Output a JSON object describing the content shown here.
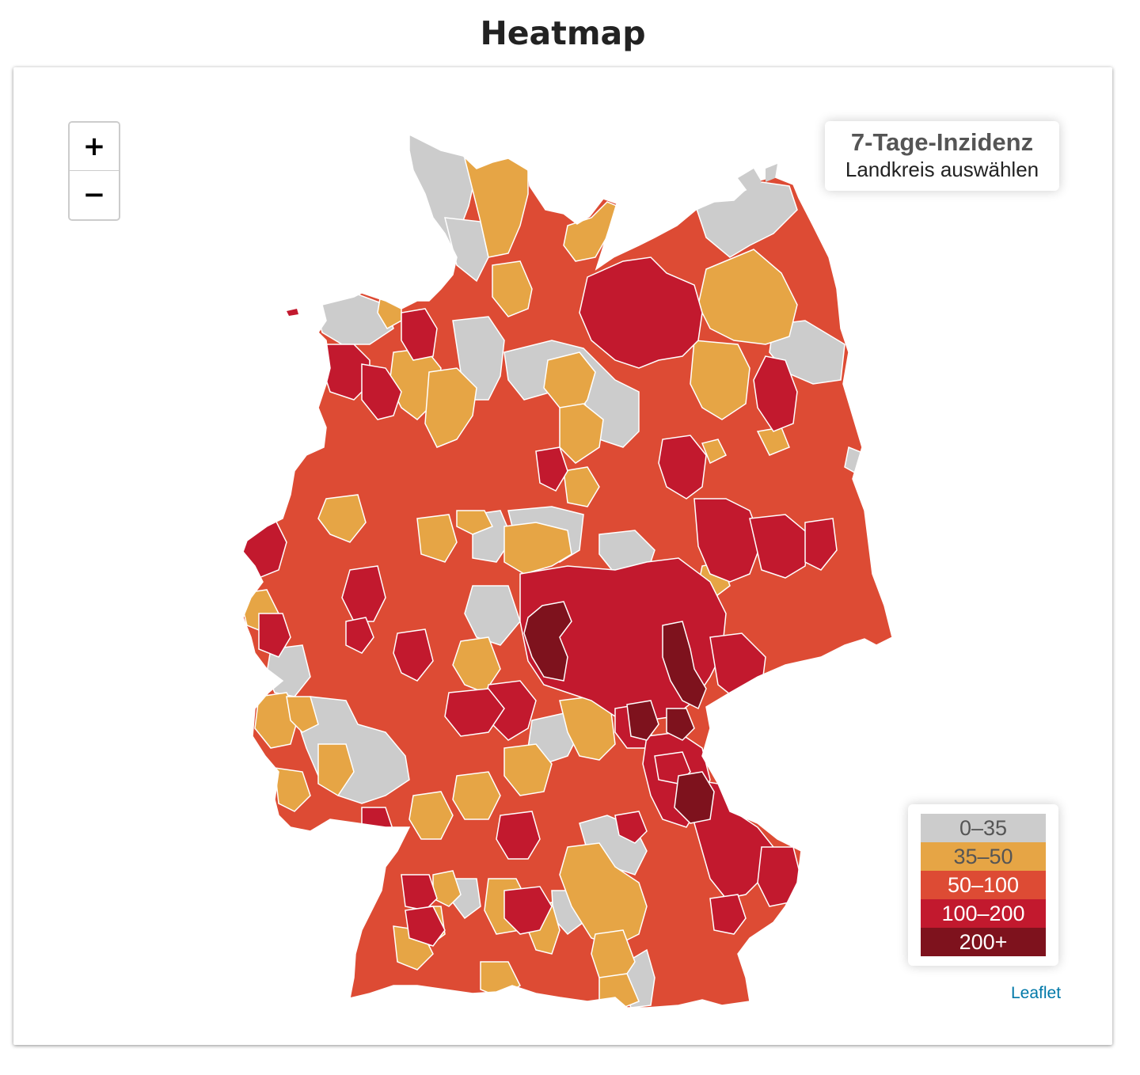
{
  "page": {
    "title": "Heatmap"
  },
  "map": {
    "zoom_in_label": "+",
    "zoom_out_label": "−",
    "info": {
      "title": "7-Tage-Inzidenz",
      "subtitle": "Landkreis auswählen"
    },
    "attribution": "Leaflet",
    "legend": [
      {
        "label": "0–35",
        "color": "#cccccc",
        "text_color": "#555555"
      },
      {
        "label": "35–50",
        "color": "#e6a545",
        "text_color": "#555555"
      },
      {
        "label": "50–100",
        "color": "#dd4b34",
        "text_color": "#ffffff"
      },
      {
        "label": "100–200",
        "color": "#c2192e",
        "text_color": "#ffffff"
      },
      {
        "label": "200+",
        "color": "#7e121d",
        "text_color": "#ffffff"
      }
    ],
    "land_color": "#dd4b34",
    "border_color": "#ffffff"
  }
}
